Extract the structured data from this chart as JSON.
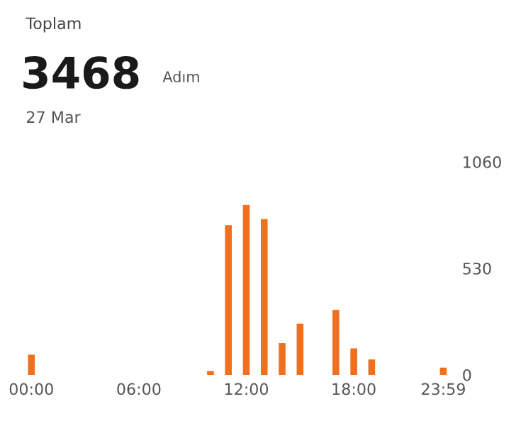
{
  "chart_data": {
    "type": "bar",
    "title": "Toplam",
    "annotations": [
      "3468",
      "Adım",
      "27 Mar"
    ],
    "categories": [
      "00:00",
      null,
      null,
      null,
      null,
      null,
      "06:00",
      null,
      null,
      null,
      null,
      null,
      "12:00",
      null,
      null,
      null,
      null,
      null,
      "18:00",
      null,
      null,
      null,
      null,
      "23:59"
    ],
    "values": [
      101,
      0,
      0,
      0,
      0,
      0,
      0,
      0,
      0,
      0,
      19,
      745,
      845,
      776,
      159,
      255,
      0,
      323,
      132,
      77,
      0,
      0,
      0,
      36
    ],
    "color": "#f07020",
    "ylim": [
      0,
      1060
    ],
    "yticks": [
      0,
      530,
      1060
    ],
    "grid": false,
    "legend": false
  }
}
